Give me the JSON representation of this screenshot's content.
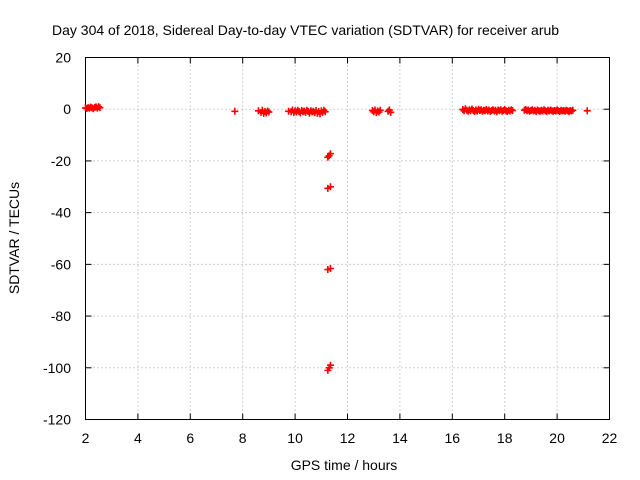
{
  "chart_data": {
    "type": "scatter",
    "title": "Day 304 of 2018, Sidereal Day-to-day VTEC variation (SDTVAR) for receiver arub",
    "xlabel": "GPS time / hours",
    "ylabel": "SDTVAR / TECUs",
    "xlim": [
      2,
      22
    ],
    "ylim": [
      -120,
      20
    ],
    "xticks": [
      2,
      4,
      6,
      8,
      10,
      12,
      14,
      16,
      18,
      20,
      22
    ],
    "yticks": [
      20,
      0,
      -20,
      -40,
      -60,
      -80,
      -100,
      -120
    ],
    "grid": true,
    "legend": "none",
    "series": [
      {
        "name": "SDTVAR",
        "color": "#ff0000",
        "marker": "plus",
        "points": [
          [
            2.0,
            0.5
          ],
          [
            2.05,
            0.3
          ],
          [
            2.1,
            0.6
          ],
          [
            2.15,
            0.4
          ],
          [
            2.2,
            0.8
          ],
          [
            2.25,
            0.5
          ],
          [
            2.3,
            0.2
          ],
          [
            2.35,
            0.7
          ],
          [
            2.4,
            0.9
          ],
          [
            2.45,
            0.4
          ],
          [
            2.5,
            1.0
          ],
          [
            2.55,
            0.6
          ],
          [
            7.7,
            -0.8
          ],
          [
            8.6,
            -0.6
          ],
          [
            8.7,
            -1.2
          ],
          [
            8.75,
            -0.4
          ],
          [
            8.8,
            -1.6
          ],
          [
            8.85,
            -0.9
          ],
          [
            8.9,
            -1.4
          ],
          [
            8.95,
            -0.7
          ],
          [
            9.0,
            -1.1
          ],
          [
            9.75,
            -0.8
          ],
          [
            9.85,
            -1.0
          ],
          [
            9.9,
            -0.3
          ],
          [
            9.95,
            -1.3
          ],
          [
            10.0,
            -0.6
          ],
          [
            10.05,
            -1.1
          ],
          [
            10.1,
            -0.4
          ],
          [
            10.15,
            -0.9
          ],
          [
            10.2,
            -1.4
          ],
          [
            10.25,
            -0.5
          ],
          [
            10.3,
            -1.0
          ],
          [
            10.35,
            -0.7
          ],
          [
            10.4,
            -1.2
          ],
          [
            10.45,
            -0.4
          ],
          [
            10.5,
            -0.9
          ],
          [
            10.55,
            -1.5
          ],
          [
            10.6,
            -0.6
          ],
          [
            10.65,
            -1.1
          ],
          [
            10.7,
            -0.8
          ],
          [
            10.75,
            -1.3
          ],
          [
            10.8,
            -0.5
          ],
          [
            10.85,
            -1.6
          ],
          [
            10.9,
            -0.9
          ],
          [
            10.95,
            -1.8
          ],
          [
            11.0,
            -0.6
          ],
          [
            11.05,
            -1.2
          ],
          [
            11.1,
            -0.4
          ],
          [
            11.15,
            -1.0
          ],
          [
            11.3,
            -18.0
          ],
          [
            11.35,
            -17.2
          ],
          [
            11.25,
            -18.6
          ],
          [
            11.25,
            -30.6
          ],
          [
            11.35,
            -30.0
          ],
          [
            11.25,
            -62.0
          ],
          [
            11.35,
            -61.6
          ],
          [
            11.25,
            -101.0
          ],
          [
            11.3,
            -100.0
          ],
          [
            11.35,
            -99.0
          ],
          [
            12.95,
            -0.5
          ],
          [
            13.0,
            -1.0
          ],
          [
            13.05,
            -0.3
          ],
          [
            13.1,
            -1.3
          ],
          [
            13.15,
            -0.7
          ],
          [
            13.2,
            -1.1
          ],
          [
            13.25,
            -0.4
          ],
          [
            13.55,
            -0.8
          ],
          [
            13.6,
            -0.3
          ],
          [
            13.65,
            -1.2
          ],
          [
            16.4,
            -0.1
          ],
          [
            16.45,
            -0.6
          ],
          [
            16.5,
            0.2
          ],
          [
            16.55,
            -0.4
          ],
          [
            16.6,
            -0.8
          ],
          [
            16.65,
            -0.2
          ],
          [
            16.7,
            -0.6
          ],
          [
            16.75,
            0.1
          ],
          [
            16.8,
            -0.5
          ],
          [
            16.85,
            -0.9
          ],
          [
            16.9,
            -0.3
          ],
          [
            16.95,
            -0.7
          ],
          [
            17.0,
            0.0
          ],
          [
            17.05,
            -0.5
          ],
          [
            17.1,
            -0.2
          ],
          [
            17.15,
            -0.8
          ],
          [
            17.2,
            -0.4
          ],
          [
            17.25,
            -0.6
          ],
          [
            17.3,
            -0.1
          ],
          [
            17.35,
            -0.7
          ],
          [
            17.4,
            -0.3
          ],
          [
            17.45,
            -0.9
          ],
          [
            17.5,
            -0.5
          ],
          [
            17.55,
            -0.2
          ],
          [
            17.6,
            -0.7
          ],
          [
            17.65,
            -0.4
          ],
          [
            17.7,
            -1.0
          ],
          [
            17.75,
            -0.3
          ],
          [
            17.8,
            -0.6
          ],
          [
            17.85,
            -0.2
          ],
          [
            17.9,
            -0.8
          ],
          [
            17.95,
            -0.5
          ],
          [
            18.0,
            -0.1
          ],
          [
            18.05,
            -0.6
          ],
          [
            18.1,
            -0.9
          ],
          [
            18.15,
            -0.4
          ],
          [
            18.2,
            -0.7
          ],
          [
            18.25,
            -0.2
          ],
          [
            18.3,
            -0.5
          ],
          [
            18.75,
            -0.4
          ],
          [
            18.8,
            -0.1
          ],
          [
            18.85,
            -0.6
          ],
          [
            18.9,
            -0.3
          ],
          [
            18.95,
            -0.8
          ],
          [
            19.0,
            -0.5
          ],
          [
            19.05,
            -0.2
          ],
          [
            19.1,
            -0.7
          ],
          [
            19.15,
            -0.4
          ],
          [
            19.2,
            -0.9
          ],
          [
            19.25,
            -0.3
          ],
          [
            19.3,
            -0.6
          ],
          [
            19.35,
            -0.8
          ],
          [
            19.4,
            -0.4
          ],
          [
            19.45,
            -0.7
          ],
          [
            19.5,
            -0.2
          ],
          [
            19.55,
            -0.6
          ],
          [
            19.6,
            -0.9
          ],
          [
            19.65,
            -0.4
          ],
          [
            19.7,
            -0.7
          ],
          [
            19.75,
            -0.3
          ],
          [
            19.8,
            -0.6
          ],
          [
            19.85,
            -0.8
          ],
          [
            19.9,
            -0.5
          ],
          [
            19.95,
            -0.7
          ],
          [
            20.0,
            -0.3
          ],
          [
            20.05,
            -0.6
          ],
          [
            20.1,
            -0.9
          ],
          [
            20.15,
            -0.4
          ],
          [
            20.2,
            -0.7
          ],
          [
            20.25,
            -0.5
          ],
          [
            20.3,
            -0.8
          ],
          [
            20.35,
            -0.4
          ],
          [
            20.4,
            -0.6
          ],
          [
            20.45,
            -0.9
          ],
          [
            20.5,
            -0.5
          ],
          [
            20.55,
            -0.7
          ],
          [
            20.6,
            -0.4
          ],
          [
            21.15,
            -0.6
          ]
        ]
      }
    ]
  }
}
